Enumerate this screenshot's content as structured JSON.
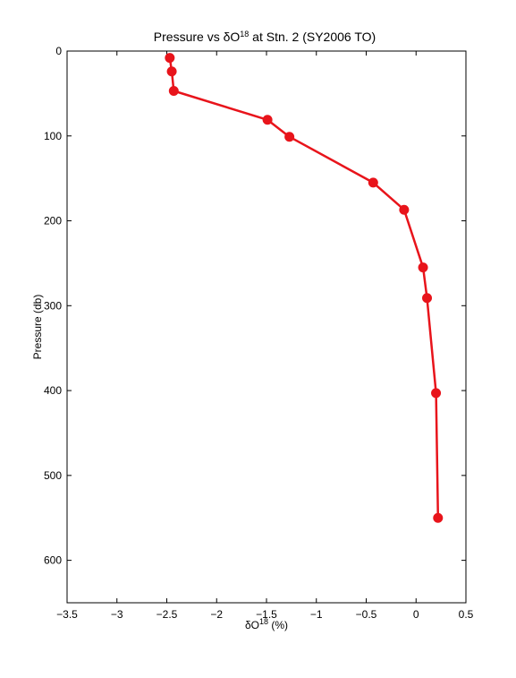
{
  "chart_data": {
    "type": "line",
    "title_parts": {
      "before": "Pressure vs δO",
      "sup": "18",
      "after": " at Stn. 2 (SY2006 TO)"
    },
    "xlabel_parts": {
      "before": "δO",
      "sup": "18",
      "after": " (%)"
    },
    "ylabel": "Pressure (db)",
    "xlim": [
      -3.5,
      0.5
    ],
    "ylim": [
      0,
      650
    ],
    "y_reversed": true,
    "xticks": [
      -3.5,
      -3,
      -2.5,
      -2,
      -1.5,
      -1,
      -0.5,
      0,
      0.5
    ],
    "xtick_labels": [
      "−3.5",
      "−3",
      "−2.5",
      "−2",
      "−1.5",
      "−1",
      "−0.5",
      "0",
      "0.5"
    ],
    "yticks": [
      0,
      100,
      200,
      300,
      400,
      500,
      600
    ],
    "ytick_labels": [
      "0",
      "100",
      "200",
      "300",
      "400",
      "500",
      "600"
    ],
    "grid": false,
    "series": [
      {
        "color": "#e8141b",
        "marker": "circle",
        "x": [
          -2.47,
          -2.45,
          -2.43,
          -1.49,
          -1.27,
          -0.43,
          -0.12,
          0.07,
          0.11,
          0.2,
          0.22
        ],
        "y": [
          8,
          24,
          47,
          81,
          101,
          155,
          187,
          255,
          291,
          403,
          550
        ]
      }
    ]
  }
}
